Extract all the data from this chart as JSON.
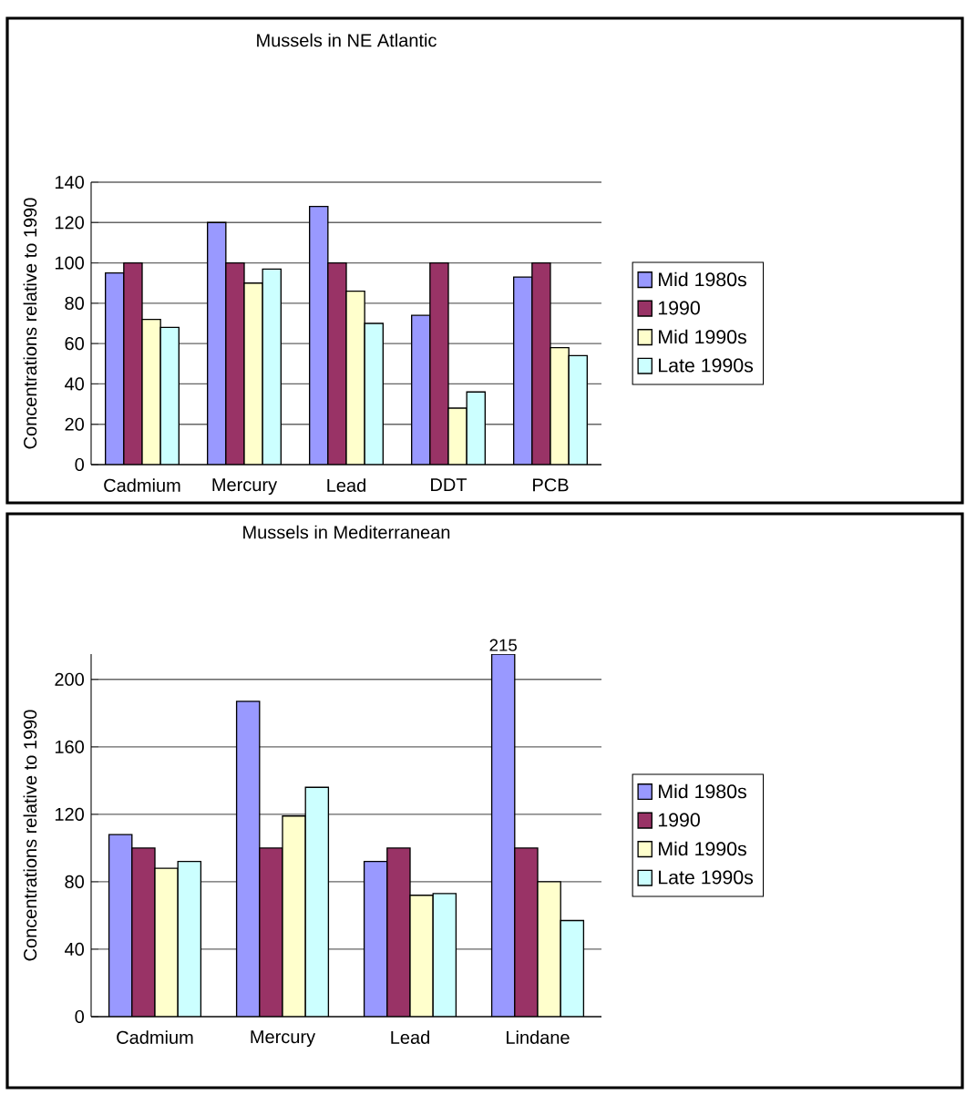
{
  "chart_data": [
    {
      "type": "bar",
      "title": "Mussels in NE Atlantic",
      "ylabel": "Concentrations relative to 1990",
      "categories": [
        "Cadmium",
        "Mercury",
        "Lead",
        "DDT",
        "PCB"
      ],
      "series": [
        {
          "name": "Mid 1980s",
          "color": "#9999ff",
          "values": [
            95,
            120,
            128,
            74,
            93
          ]
        },
        {
          "name": "1990",
          "color": "#993366",
          "values": [
            100,
            100,
            100,
            100,
            100
          ]
        },
        {
          "name": "Mid 1990s",
          "color": "#ffffcc",
          "values": [
            72,
            90,
            86,
            28,
            58
          ]
        },
        {
          "name": "Late 1990s",
          "color": "#ccffff",
          "values": [
            68,
            97,
            70,
            36,
            54
          ]
        }
      ],
      "ylim": [
        0,
        140
      ],
      "yticks": [
        0,
        20,
        40,
        60,
        80,
        100,
        120,
        140
      ],
      "grid": "y",
      "legend": "right"
    },
    {
      "type": "bar",
      "title": "Mussels in Mediterranean",
      "ylabel": "Concentrations relative to 1990",
      "categories": [
        "Cadmium",
        "Mercury",
        "Lead",
        "Lindane"
      ],
      "series": [
        {
          "name": "Mid 1980s",
          "color": "#9999ff",
          "values": [
            108,
            187,
            92,
            215
          ],
          "value_labels": [
            null,
            null,
            null,
            "215"
          ]
        },
        {
          "name": "1990",
          "color": "#993366",
          "values": [
            100,
            100,
            100,
            100
          ]
        },
        {
          "name": "Mid 1990s",
          "color": "#ffffcc",
          "values": [
            88,
            119,
            72,
            80
          ]
        },
        {
          "name": "Late 1990s",
          "color": "#ccffff",
          "values": [
            92,
            136,
            73,
            57
          ]
        }
      ],
      "ylim": [
        0,
        215
      ],
      "yticks": [
        0,
        40,
        80,
        120,
        160,
        200
      ],
      "grid": "y",
      "legend": "right"
    }
  ]
}
